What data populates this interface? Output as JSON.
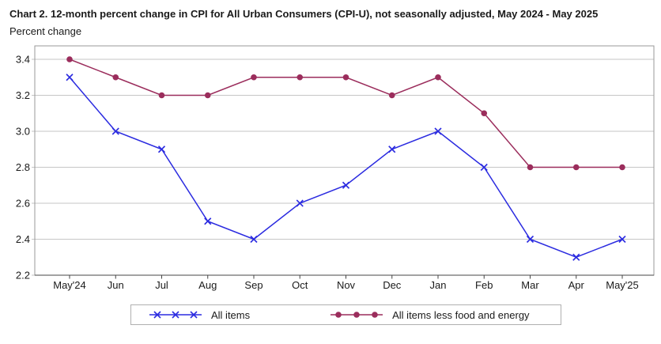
{
  "title": "Chart 2. 12-month percent change in CPI for All Urban Consumers (CPI-U), not seasonally adjusted, May 2024 - May 2025",
  "subtitle": "Percent change",
  "chart_data": {
    "type": "line",
    "categories": [
      "May'24",
      "Jun",
      "Jul",
      "Aug",
      "Sep",
      "Oct",
      "Nov",
      "Dec",
      "Jan",
      "Feb",
      "Mar",
      "Apr",
      "May'25"
    ],
    "series": [
      {
        "name": "All items",
        "marker": "x",
        "color": "#2b2be0",
        "values": [
          3.3,
          3.0,
          2.9,
          2.5,
          2.4,
          2.6,
          2.7,
          2.9,
          3.0,
          2.8,
          2.4,
          2.3,
          2.4
        ]
      },
      {
        "name": "All items less food and energy",
        "marker": "circle",
        "color": "#9b2d5c",
        "values": [
          3.4,
          3.3,
          3.2,
          3.2,
          3.3,
          3.3,
          3.3,
          3.2,
          3.3,
          3.1,
          2.8,
          2.8,
          2.8
        ]
      }
    ],
    "ylim": [
      2.2,
      3.4
    ],
    "yticks": [
      "3.4",
      "3.2",
      "3.0",
      "2.8",
      "2.6",
      "2.4",
      "2.2"
    ],
    "grid": true,
    "legend_position": "bottom"
  },
  "colors": {
    "gridline": "#c6c6c6",
    "plot_border": "#999999",
    "axis_line": "#444444",
    "text": "#1a1a1a",
    "legend_border": "#b0b0b0"
  }
}
